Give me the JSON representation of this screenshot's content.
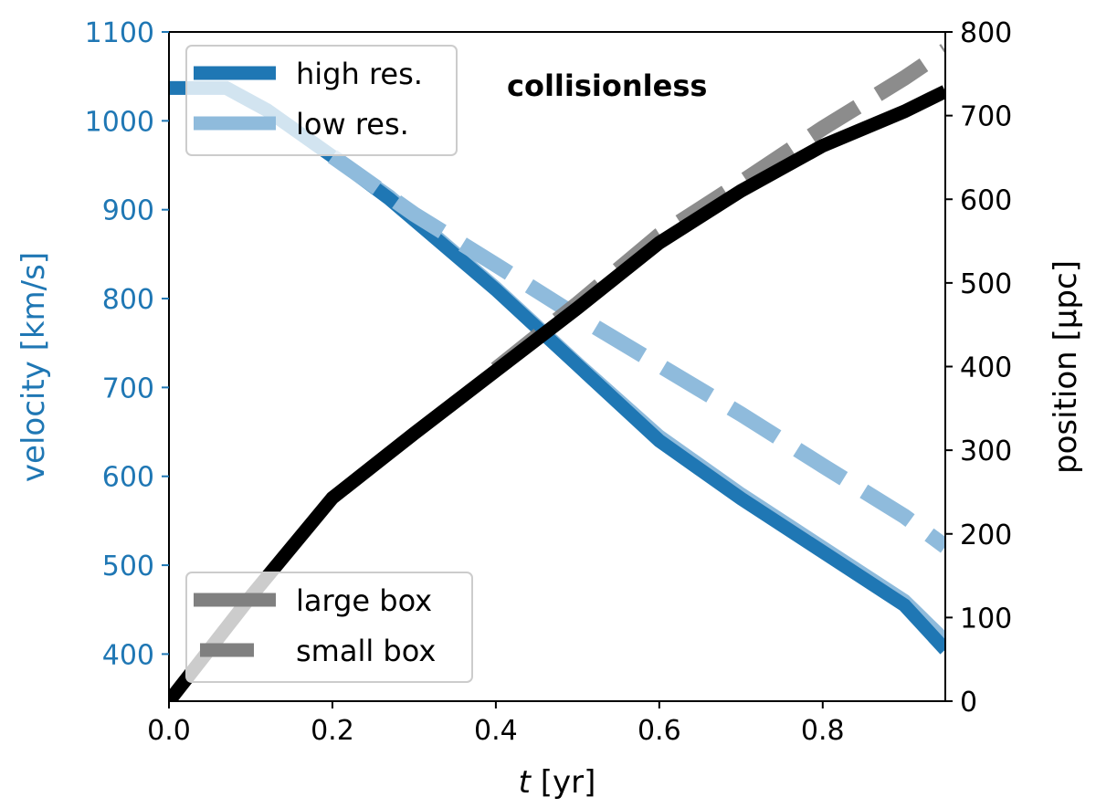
{
  "chart_data": {
    "type": "line",
    "title": "collisionless",
    "xlabel": "t [yr]",
    "ylabel_left": "velocity [km/s]",
    "ylabel_right": "position [μpc]",
    "xlim": [
      0,
      0.95
    ],
    "ylim_left": [
      347,
      1100
    ],
    "ylim_right": [
      0,
      800
    ],
    "xticks": [
      "0.0",
      "0.2",
      "0.4",
      "0.6",
      "0.8"
    ],
    "yticks_left": [
      "400",
      "500",
      "600",
      "700",
      "800",
      "900",
      "1000",
      "1100"
    ],
    "yticks_right": [
      "0",
      "100",
      "200",
      "300",
      "400",
      "500",
      "600",
      "700",
      "800"
    ],
    "grid": false,
    "colors": {
      "high_res": "#1f77b4",
      "low_res": "#8fbbdc",
      "position": "#000000",
      "box_legend": "#808080",
      "left_axis": "#1f77b4"
    },
    "legend_resolution": {
      "placement": "top-left",
      "entries": [
        "high res.",
        "low res."
      ]
    },
    "legend_box": {
      "placement": "bottom-left",
      "entries": [
        "large box",
        "small box"
      ]
    },
    "series": [
      {
        "axis": "left",
        "style": "solid",
        "color": "#8fbbdc",
        "x": [
          0,
          0.07,
          0.12,
          0.2,
          0.27,
          0.4,
          0.5,
          0.6,
          0.7,
          0.8,
          0.9,
          0.95
        ],
        "y": [
          1037,
          1037,
          1012,
          960,
          915,
          812,
          727,
          645,
          580,
          520,
          460,
          415
        ]
      },
      {
        "axis": "left",
        "style": "solid",
        "color": "#1f77b4",
        "x": [
          0,
          0.07,
          0.12,
          0.2,
          0.27,
          0.4,
          0.5,
          0.6,
          0.7,
          0.8,
          0.9,
          0.95
        ],
        "y": [
          1037,
          1037,
          1012,
          960,
          912,
          810,
          725,
          640,
          575,
          515,
          455,
          405
        ]
      },
      {
        "axis": "left",
        "style": "dashed",
        "color": "#8fbbdc",
        "x": [
          0.2,
          0.3,
          0.4,
          0.5,
          0.6,
          0.7,
          0.8,
          0.9,
          0.95
        ],
        "y": [
          960,
          895,
          838,
          780,
          725,
          670,
          612,
          555,
          521
        ]
      },
      {
        "axis": "right",
        "style": "dashed",
        "color": "#808080",
        "x": [
          0.4,
          0.5,
          0.6,
          0.7,
          0.8,
          0.9,
          0.95
        ],
        "y": [
          397,
          475,
          557,
          620,
          685,
          745,
          778
        ]
      },
      {
        "axis": "right",
        "style": "solid",
        "color": "#000000",
        "x": [
          0,
          0.1,
          0.2,
          0.3,
          0.4,
          0.5,
          0.6,
          0.7,
          0.8,
          0.9,
          0.95
        ],
        "y": [
          0,
          125,
          243,
          320,
          395,
          470,
          548,
          610,
          664,
          705,
          729
        ]
      }
    ]
  }
}
